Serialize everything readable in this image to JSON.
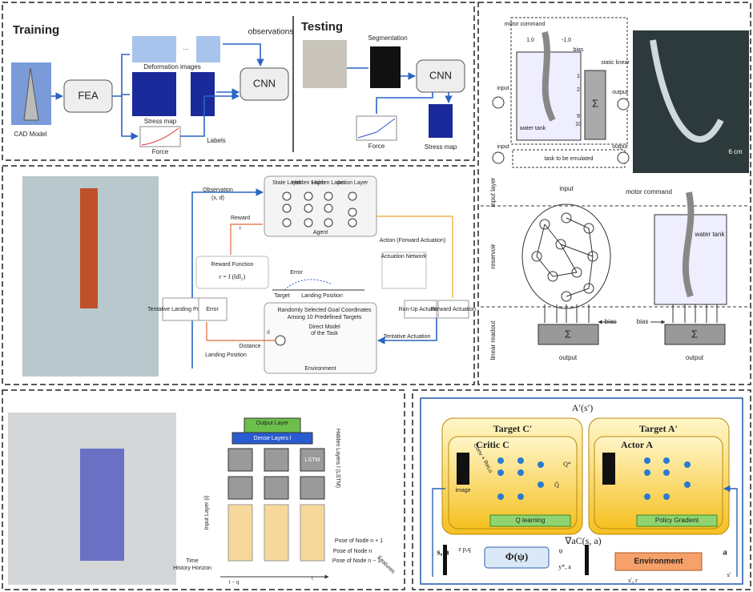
{
  "panel_a": {
    "training": "Training",
    "testing": "Testing",
    "cad_model": "CAD Model",
    "fea": "FEA",
    "deformation_images": "Deformation images",
    "stress_map": "Stress map",
    "force": "Force",
    "labels": "Labels",
    "observations": "observations",
    "cnn": "CNN",
    "ellipsis": "...",
    "segmentation": "Segmentation",
    "test_cnn": "CNN",
    "test_force": "Force",
    "test_stress_map": "Stress map"
  },
  "panel_b": {
    "motor_command": "motor command",
    "pos": "1.0",
    "neg": "-1.0",
    "bias": "bias",
    "static_linear": "static linear",
    "input": "input",
    "output": "output",
    "water_tank": "water tank",
    "n1": "1",
    "n2": "2",
    "n9": "9",
    "n10": "10",
    "sigma": "Σ",
    "scale": "6 cm",
    "input2": "input",
    "task": "task to be emulated",
    "output2": "output",
    "input_layer": "input layer",
    "res_input": "input",
    "motor_command2": "motor command",
    "reservoir": "reservoir",
    "water_tank2": "water tank",
    "bias_left": "bias",
    "bias_right": "bias",
    "linear_readout": "linear readout",
    "sigma_left": "Σ",
    "sigma_right": "Σ",
    "output_left": "output",
    "output_right": "output"
  },
  "panel_c": {
    "observation": "Observation",
    "obs_vars": "(x, d)",
    "state_layer": "State Layer",
    "hidden_layer_1": "Hidden Layer",
    "hidden_layer_2": "Hidden Layer",
    "action_layer": "Action Layer",
    "agent": "Agent",
    "reward": "Reward",
    "r": "r",
    "reward_function": "Reward Function",
    "reward_formula": "r = f (‖d‖₂)",
    "action": "Action (Forward Actuation)",
    "actuation_network": "Actuation Network",
    "error": "Error",
    "target": "Target",
    "landing_position": "Landing Position",
    "tentative_landing": "Tentative Landing Position",
    "error_box": "Error",
    "run_up": "Run-Up Actuation",
    "forward": "Forward Actuation",
    "goal_1": "Randomly Selected Goal Coordinates",
    "goal_2": "Among 10 Predefined Targets",
    "direct_1": "Direct Model",
    "direct_2": "of the Task",
    "environment": "Environment",
    "d": "d",
    "distance": "Distance",
    "tentative_actuation": "Tentative Actuation",
    "landing_position_bottom": "Landing Position"
  },
  "panel_d": {
    "output_layer": "Output Layer",
    "dense_layers": "Dense Layers l",
    "hidden_layers": "Hidden Layers l (LSTM)",
    "lstm": "LSTM",
    "input_layer": "Input Layer (i)",
    "node_plus": "Pose of Node n + 1",
    "node": "Pose of Node n",
    "node_minus": "Pose of Node n − 1",
    "features": "Features",
    "time_1": "Time",
    "time_2": "History Horizon",
    "t_minus_q": "t − q",
    "t": "t"
  },
  "panel_e": {
    "a_prime": "A′(s′)",
    "target_c": "Target C′",
    "target_a": "Target A′",
    "critic": "Critic C",
    "actor": "Actor A",
    "q_star": "Q*",
    "q_bar": "Q̄",
    "q_learning": "Q learning",
    "policy_gradient": "Policy Gradient",
    "gradient": "∇aC(s, a)",
    "s_a": "s, a",
    "a": "a",
    "environment": "Environment",
    "phi": "Φ(ψ)",
    "z": "z p,q",
    "psi": "ψ",
    "y_a": "y*, a",
    "s_r": "s′, r",
    "s_prime": "s′",
    "image": "image",
    "conv": "Conv + ReLu"
  }
}
